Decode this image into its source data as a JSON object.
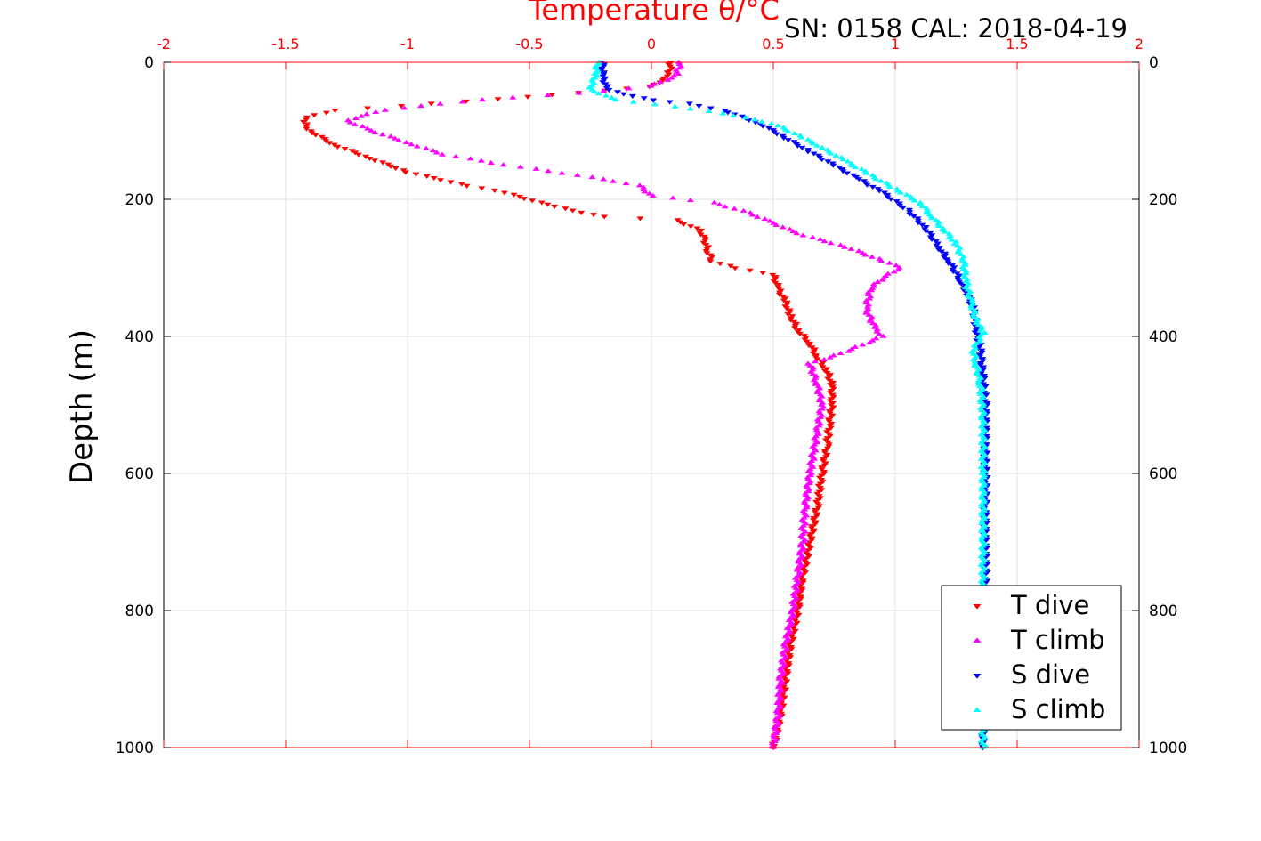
{
  "caption": "SN: 0158  CAL: 2018-04-19",
  "chart_data": {
    "type": "scatter",
    "title": "",
    "xlabel": "Temperature θ/°C",
    "ylabel": "Depth (m)",
    "xlim": [
      -2,
      2
    ],
    "ylim": [
      0,
      1000
    ],
    "y_reversed": true,
    "grid": true,
    "legend_position": "bottom-right",
    "x_ticks": [
      "-2",
      "-1.5",
      "-1",
      "-0.5",
      "0",
      "0.5",
      "1",
      "1.5",
      "2"
    ],
    "y_ticks": [
      "0",
      "200",
      "400",
      "600",
      "800",
      "1000"
    ],
    "colors": {
      "axis_top": "#ff0000",
      "axis": "#000000"
    },
    "series": [
      {
        "name": "T dive",
        "color": "#ff0000",
        "marker": "triangle-down",
        "points": [
          [
            0.08,
            0
          ],
          [
            0.07,
            20
          ],
          [
            0.0,
            35
          ],
          [
            -0.5,
            50
          ],
          [
            -0.9,
            60
          ],
          [
            -1.3,
            70
          ],
          [
            -1.42,
            80
          ],
          [
            -1.42,
            90
          ],
          [
            -1.4,
            100
          ],
          [
            -1.3,
            120
          ],
          [
            -1.15,
            140
          ],
          [
            -1.0,
            160
          ],
          [
            -0.75,
            180
          ],
          [
            -0.6,
            190
          ],
          [
            -0.4,
            210
          ],
          [
            -0.2,
            225
          ],
          [
            0.1,
            230
          ],
          [
            0.2,
            245
          ],
          [
            0.22,
            260
          ],
          [
            0.23,
            275
          ],
          [
            0.25,
            290
          ],
          [
            0.35,
            300
          ],
          [
            0.5,
            310
          ],
          [
            0.52,
            330
          ],
          [
            0.55,
            350
          ],
          [
            0.57,
            370
          ],
          [
            0.6,
            390
          ],
          [
            0.65,
            410
          ],
          [
            0.68,
            430
          ],
          [
            0.72,
            450
          ],
          [
            0.74,
            470
          ],
          [
            0.74,
            500
          ],
          [
            0.73,
            530
          ],
          [
            0.72,
            560
          ],
          [
            0.7,
            600
          ],
          [
            0.68,
            650
          ],
          [
            0.65,
            700
          ],
          [
            0.62,
            750
          ],
          [
            0.6,
            800
          ],
          [
            0.57,
            850
          ],
          [
            0.55,
            900
          ],
          [
            0.53,
            950
          ],
          [
            0.5,
            1000
          ]
        ]
      },
      {
        "name": "T climb",
        "color": "#ff00ff",
        "marker": "triangle-up",
        "points": [
          [
            0.12,
            0
          ],
          [
            0.1,
            20
          ],
          [
            0.0,
            35
          ],
          [
            -0.3,
            45
          ],
          [
            -0.7,
            55
          ],
          [
            -1.1,
            70
          ],
          [
            -1.25,
            85
          ],
          [
            -1.15,
            100
          ],
          [
            -0.98,
            120
          ],
          [
            -0.85,
            135
          ],
          [
            -0.6,
            150
          ],
          [
            -0.3,
            165
          ],
          [
            -0.05,
            180
          ],
          [
            0.0,
            195
          ],
          [
            0.25,
            205
          ],
          [
            0.4,
            220
          ],
          [
            0.5,
            235
          ],
          [
            0.6,
            250
          ],
          [
            0.8,
            270
          ],
          [
            0.95,
            290
          ],
          [
            1.02,
            300
          ],
          [
            0.95,
            315
          ],
          [
            0.9,
            330
          ],
          [
            0.88,
            360
          ],
          [
            0.92,
            390
          ],
          [
            0.95,
            400
          ],
          [
            0.78,
            425
          ],
          [
            0.65,
            440
          ],
          [
            0.68,
            470
          ],
          [
            0.7,
            500
          ],
          [
            0.68,
            540
          ],
          [
            0.65,
            600
          ],
          [
            0.63,
            650
          ],
          [
            0.62,
            700
          ],
          [
            0.6,
            750
          ],
          [
            0.58,
            800
          ],
          [
            0.55,
            850
          ],
          [
            0.53,
            900
          ],
          [
            0.52,
            950
          ],
          [
            0.5,
            1000
          ]
        ]
      },
      {
        "name": "S dive",
        "color": "#0000ff",
        "marker": "triangle-down",
        "points": [
          [
            -0.2,
            0
          ],
          [
            -0.2,
            20
          ],
          [
            -0.18,
            40
          ],
          [
            0.0,
            55
          ],
          [
            0.15,
            60
          ],
          [
            0.3,
            70
          ],
          [
            0.45,
            90
          ],
          [
            0.55,
            110
          ],
          [
            0.65,
            130
          ],
          [
            0.75,
            150
          ],
          [
            0.85,
            170
          ],
          [
            0.95,
            190
          ],
          [
            1.05,
            215
          ],
          [
            1.12,
            240
          ],
          [
            1.18,
            270
          ],
          [
            1.22,
            290
          ],
          [
            1.27,
            320
          ],
          [
            1.3,
            340
          ],
          [
            1.32,
            360
          ],
          [
            1.33,
            385
          ],
          [
            1.35,
            420
          ],
          [
            1.36,
            460
          ],
          [
            1.37,
            500
          ],
          [
            1.37,
            560
          ],
          [
            1.37,
            650
          ],
          [
            1.37,
            750
          ],
          [
            1.36,
            850
          ],
          [
            1.36,
            950
          ],
          [
            1.36,
            1000
          ]
        ]
      },
      {
        "name": "S climb",
        "color": "#00ffff",
        "marker": "triangle-up",
        "points": [
          [
            -0.22,
            0
          ],
          [
            -0.23,
            20
          ],
          [
            -0.25,
            40
          ],
          [
            -0.15,
            55
          ],
          [
            0.1,
            65
          ],
          [
            0.3,
            75
          ],
          [
            0.5,
            90
          ],
          [
            0.62,
            110
          ],
          [
            0.7,
            125
          ],
          [
            0.8,
            145
          ],
          [
            0.9,
            165
          ],
          [
            1.0,
            185
          ],
          [
            1.1,
            205
          ],
          [
            1.15,
            225
          ],
          [
            1.2,
            245
          ],
          [
            1.25,
            265
          ],
          [
            1.28,
            290
          ],
          [
            1.29,
            320
          ],
          [
            1.31,
            350
          ],
          [
            1.33,
            375
          ],
          [
            1.36,
            395
          ],
          [
            1.32,
            420
          ],
          [
            1.33,
            440
          ],
          [
            1.35,
            470
          ],
          [
            1.36,
            520
          ],
          [
            1.36,
            600
          ],
          [
            1.36,
            700
          ],
          [
            1.36,
            800
          ],
          [
            1.36,
            900
          ],
          [
            1.36,
            1000
          ]
        ]
      }
    ]
  }
}
